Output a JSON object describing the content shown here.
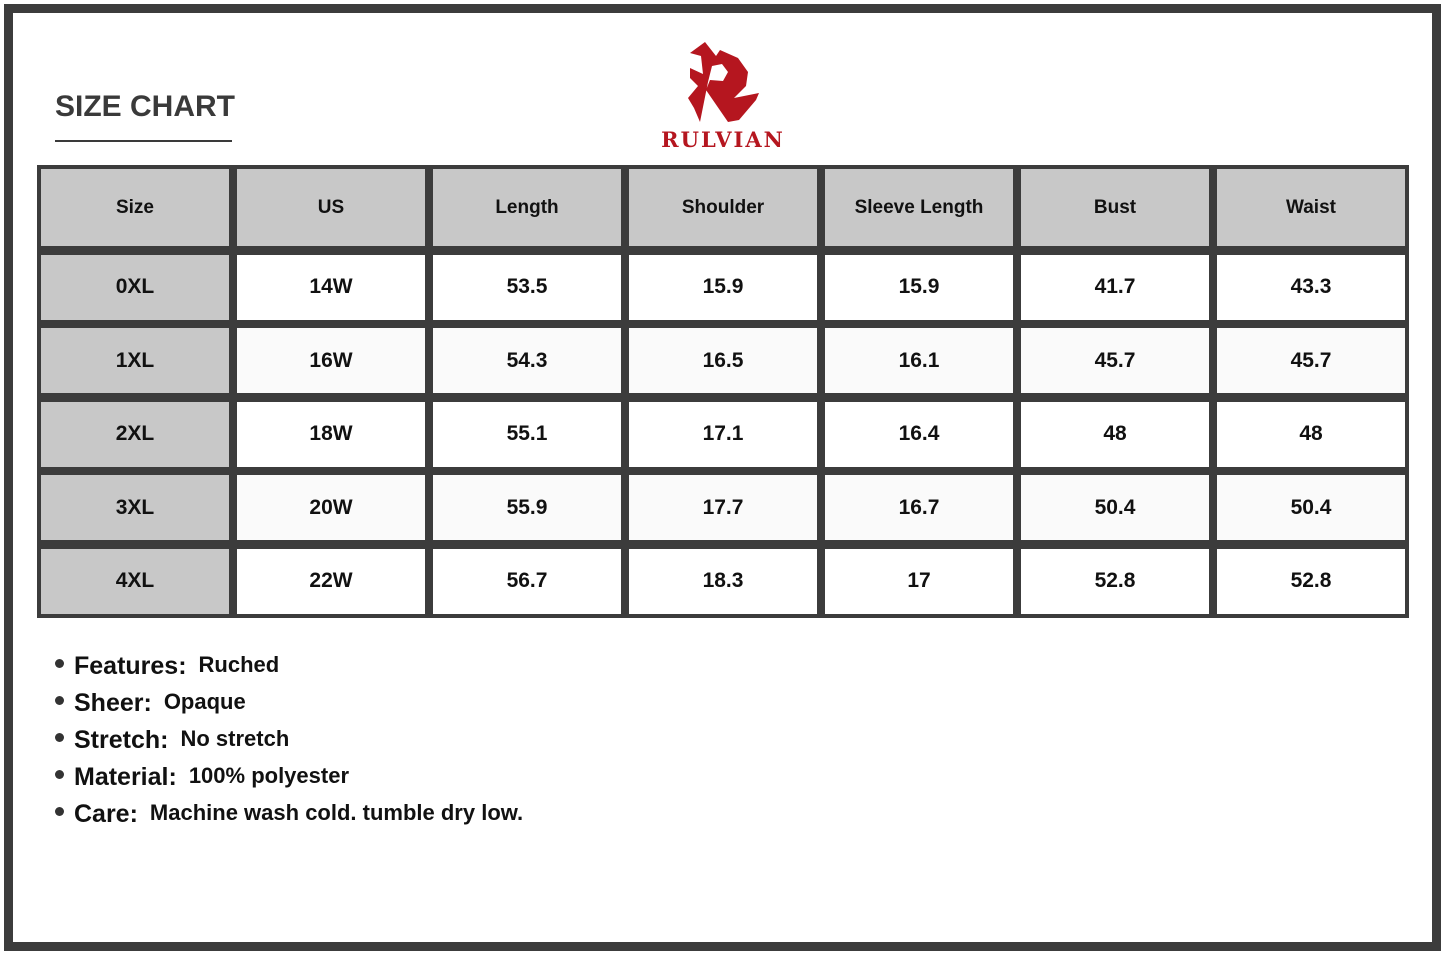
{
  "title": "SIZE CHART",
  "brand": {
    "name": "RULVIAN",
    "color": "#b5161f",
    "logo_icon": "stylized-r-logo"
  },
  "table": {
    "headers": [
      "Size",
      "US",
      "Length",
      "Shoulder",
      "Sleeve Length",
      "Bust",
      "Waist"
    ],
    "rows": [
      [
        "0XL",
        "14W",
        "53.5",
        "15.9",
        "15.9",
        "41.7",
        "43.3"
      ],
      [
        "1XL",
        "16W",
        "54.3",
        "16.5",
        "16.1",
        "45.7",
        "45.7"
      ],
      [
        "2XL",
        "18W",
        "55.1",
        "17.1",
        "16.4",
        "48",
        "48"
      ],
      [
        "3XL",
        "20W",
        "55.9",
        "17.7",
        "16.7",
        "50.4",
        "50.4"
      ],
      [
        "4XL",
        "22W",
        "56.7",
        "18.3",
        "17",
        "52.8",
        "52.8"
      ]
    ]
  },
  "features": [
    {
      "label": "Features:",
      "value": "Ruched"
    },
    {
      "label": "Sheer:",
      "value": "Opaque"
    },
    {
      "label": "Stretch:",
      "value": "No stretch"
    },
    {
      "label": "Material:",
      "value": "100% polyester"
    },
    {
      "label": "Care:",
      "value": "Machine wash cold. tumble dry low."
    }
  ]
}
